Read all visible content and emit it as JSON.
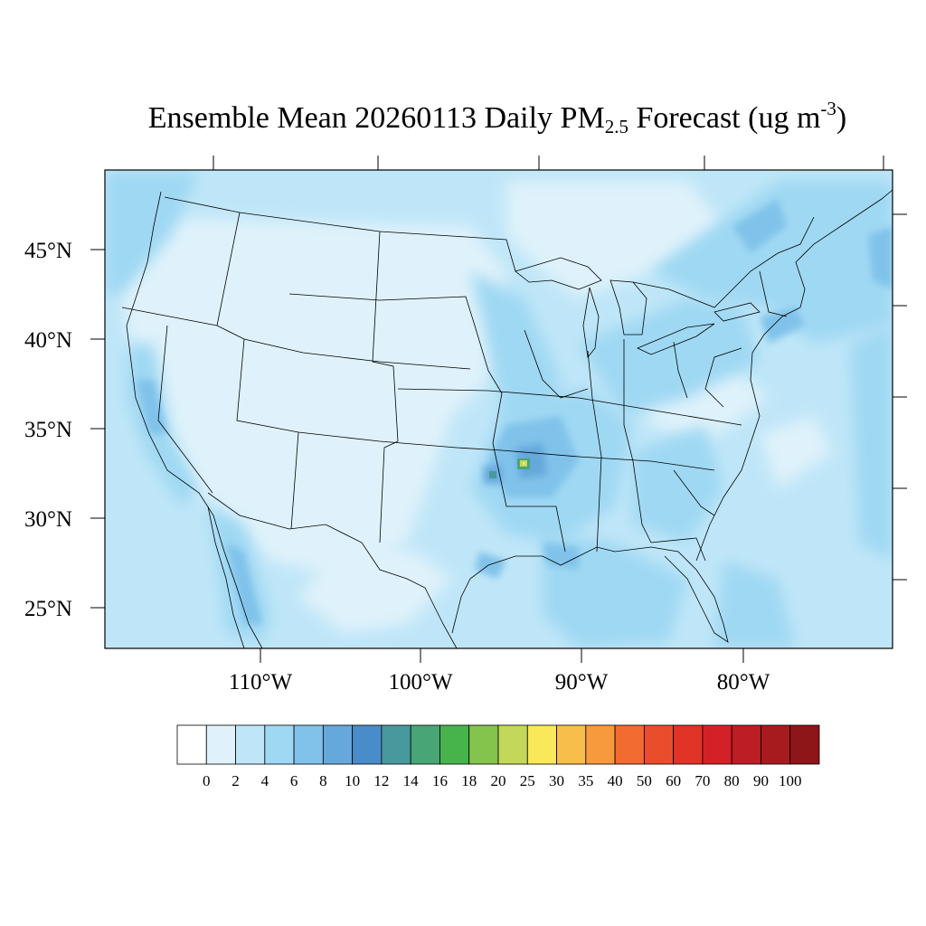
{
  "title": {
    "prefix": "Ensemble Mean 20260113 Daily PM",
    "subscript": "2.5",
    "middle": " Forecast (ug m",
    "superscript": "-3",
    "suffix": ")"
  },
  "map": {
    "lat_labels": [
      "45°N",
      "40°N",
      "35°N",
      "30°N",
      "25°N"
    ],
    "lon_labels": [
      "110°W",
      "100°W",
      "90°W",
      "80°W"
    ]
  },
  "colorbar": {
    "labels": [
      "0",
      "2",
      "4",
      "6",
      "8",
      "10",
      "12",
      "14",
      "16",
      "18",
      "20",
      "25",
      "30",
      "35",
      "40",
      "50",
      "60",
      "70",
      "80",
      "90",
      "100"
    ],
    "colors": [
      "#ffffff",
      "#dff2fb",
      "#bfe6f8",
      "#9fd8f3",
      "#80c2ea",
      "#66a8dc",
      "#4a8bc9",
      "#48999e",
      "#48a676",
      "#46b44a",
      "#84c44d",
      "#c3d85a",
      "#f8e85a",
      "#f7be4b",
      "#f79a3e",
      "#f26b31",
      "#ea4d2c",
      "#e03428",
      "#d42128",
      "#bd1d24",
      "#a71b1f",
      "#8e1518"
    ]
  },
  "chart_data": {
    "type": "heatmap",
    "title": "Ensemble Mean 20260113 Daily PM2.5 Forecast (ug m-3)",
    "date": "20260113",
    "variable": "Daily PM2.5",
    "units": "ug m-3",
    "lat_ticks": [
      45,
      40,
      35,
      30,
      25
    ],
    "lon_ticks": [
      -110,
      -100,
      -90,
      -80
    ],
    "levels": [
      0,
      2,
      4,
      6,
      8,
      10,
      12,
      14,
      16,
      18,
      20,
      25,
      30,
      35,
      40,
      50,
      60,
      70,
      80,
      90,
      100
    ]
  }
}
